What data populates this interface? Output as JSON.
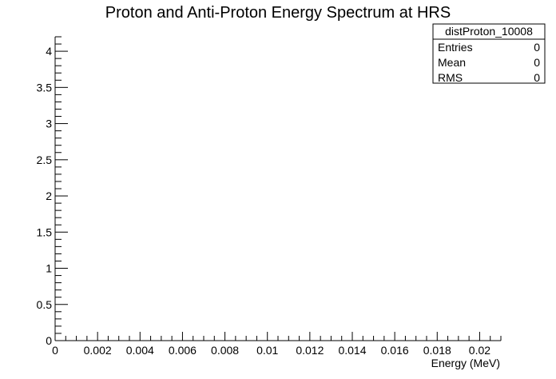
{
  "chart_data": {
    "type": "bar",
    "title": "Proton and Anti-Proton Energy Spectrum at HRS",
    "xlabel": "Energy (MeV)",
    "ylabel": "",
    "xlim": [
      0,
      0.021
    ],
    "ylim": [
      0,
      4.2
    ],
    "x_ticks": [
      0,
      0.002,
      0.004,
      0.006,
      0.008,
      0.01,
      0.012,
      0.014,
      0.016,
      0.018,
      0.02
    ],
    "x_tick_labels": [
      "0",
      "0.002",
      "0.004",
      "0.006",
      "0.008",
      "0.01",
      "0.012",
      "0.014",
      "0.016",
      "0.018",
      "0.02"
    ],
    "y_ticks": [
      0,
      0.5,
      1,
      1.5,
      2,
      2.5,
      3,
      3.5,
      4
    ],
    "y_tick_labels": [
      "0",
      "0.5",
      "1",
      "1.5",
      "2",
      "2.5",
      "3",
      "3.5",
      "4"
    ],
    "x": [],
    "values": [],
    "grid": false
  },
  "stats_box": {
    "name": "distProton_10008",
    "rows": [
      {
        "label": "Entries",
        "value": "0"
      },
      {
        "label": "Mean",
        "value": "0"
      },
      {
        "label": "RMS",
        "value": "0"
      }
    ]
  }
}
